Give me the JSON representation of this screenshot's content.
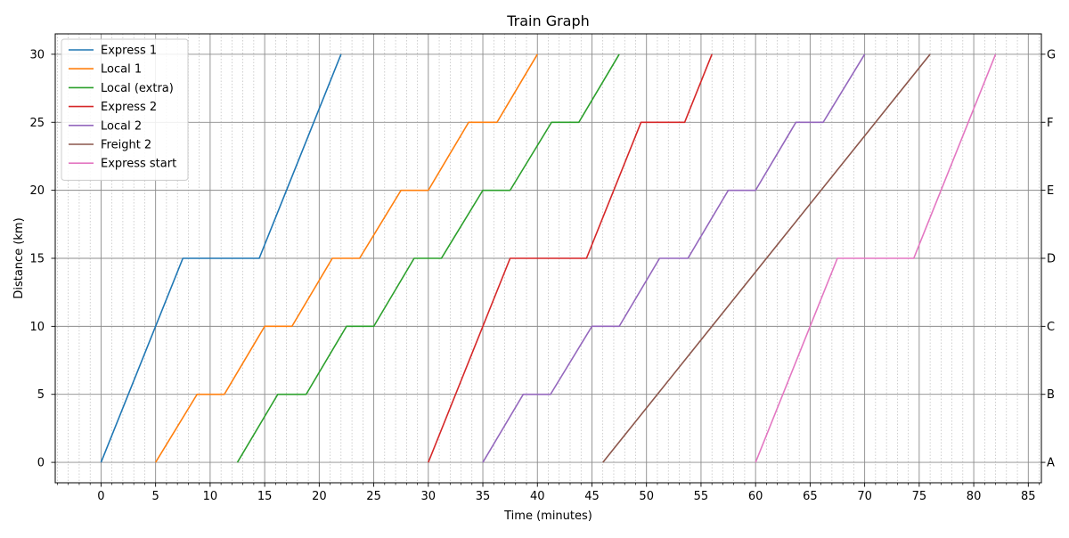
{
  "chart_data": {
    "type": "line",
    "title": "Train Graph",
    "xlabel": "Time (minutes)",
    "ylabel": "Distance (km)",
    "xlim": [
      -4.2,
      86.2
    ],
    "ylim": [
      -1.5,
      31.5
    ],
    "x_ticks": [
      0,
      5,
      10,
      15,
      20,
      25,
      30,
      35,
      40,
      45,
      50,
      55,
      60,
      65,
      70,
      75,
      80,
      85
    ],
    "x_tick_labels": [
      "0",
      "5",
      "10",
      "15",
      "20",
      "25",
      "30",
      "35",
      "40",
      "45",
      "50",
      "55",
      "60",
      "65",
      "70",
      "75",
      "80",
      "85"
    ],
    "y_ticks": [
      0,
      5,
      10,
      15,
      20,
      25,
      30
    ],
    "y_tick_labels": [
      "0",
      "5",
      "10",
      "15",
      "20",
      "25",
      "30"
    ],
    "x_minor_step": 1,
    "grid": "major solid, minor dotted",
    "stations": [
      {
        "name": "A",
        "km": 0
      },
      {
        "name": "B",
        "km": 5
      },
      {
        "name": "C",
        "km": 10
      },
      {
        "name": "D",
        "km": 15
      },
      {
        "name": "E",
        "km": 20
      },
      {
        "name": "F",
        "km": 25
      },
      {
        "name": "G",
        "km": 30
      }
    ],
    "legend_position": "top-left",
    "series": [
      {
        "name": "Express 1",
        "color": "#1f77b4",
        "x": [
          0,
          7.5,
          14.5,
          22
        ],
        "y": [
          0,
          15,
          15,
          30
        ]
      },
      {
        "name": "Local 1",
        "color": "#ff7f0e",
        "x": [
          5,
          8.8,
          11.3,
          15,
          17.5,
          21.2,
          23.7,
          27.5,
          30,
          33.7,
          36.3,
          40
        ],
        "y": [
          0,
          5,
          5,
          10,
          10,
          15,
          15,
          20,
          20,
          25,
          25,
          30
        ]
      },
      {
        "name": "Local (extra)",
        "color": "#2ca02c",
        "x": [
          12.5,
          16.2,
          18.8,
          22.5,
          25,
          28.7,
          31.2,
          35,
          37.5,
          41.3,
          43.8,
          47.5
        ],
        "y": [
          0,
          5,
          5,
          10,
          10,
          15,
          15,
          20,
          20,
          25,
          25,
          30
        ]
      },
      {
        "name": "Express 2",
        "color": "#d62728",
        "x": [
          30,
          37.5,
          44.5,
          49.5,
          53.5,
          56
        ],
        "y": [
          0,
          15,
          15,
          25,
          25,
          30
        ]
      },
      {
        "name": "Local 2",
        "color": "#9467bd",
        "x": [
          35,
          38.7,
          41.2,
          45,
          47.5,
          51.2,
          53.8,
          57.5,
          60,
          63.7,
          66.2,
          70
        ],
        "y": [
          0,
          5,
          5,
          10,
          10,
          15,
          15,
          20,
          20,
          25,
          25,
          30
        ]
      },
      {
        "name": "Freight 2",
        "color": "#8c564b",
        "x": [
          46,
          76
        ],
        "y": [
          0,
          30
        ]
      },
      {
        "name": "Express start",
        "color": "#e377c2",
        "x": [
          60,
          67.5,
          74.5,
          82
        ],
        "y": [
          0,
          15,
          15,
          30
        ]
      }
    ]
  }
}
